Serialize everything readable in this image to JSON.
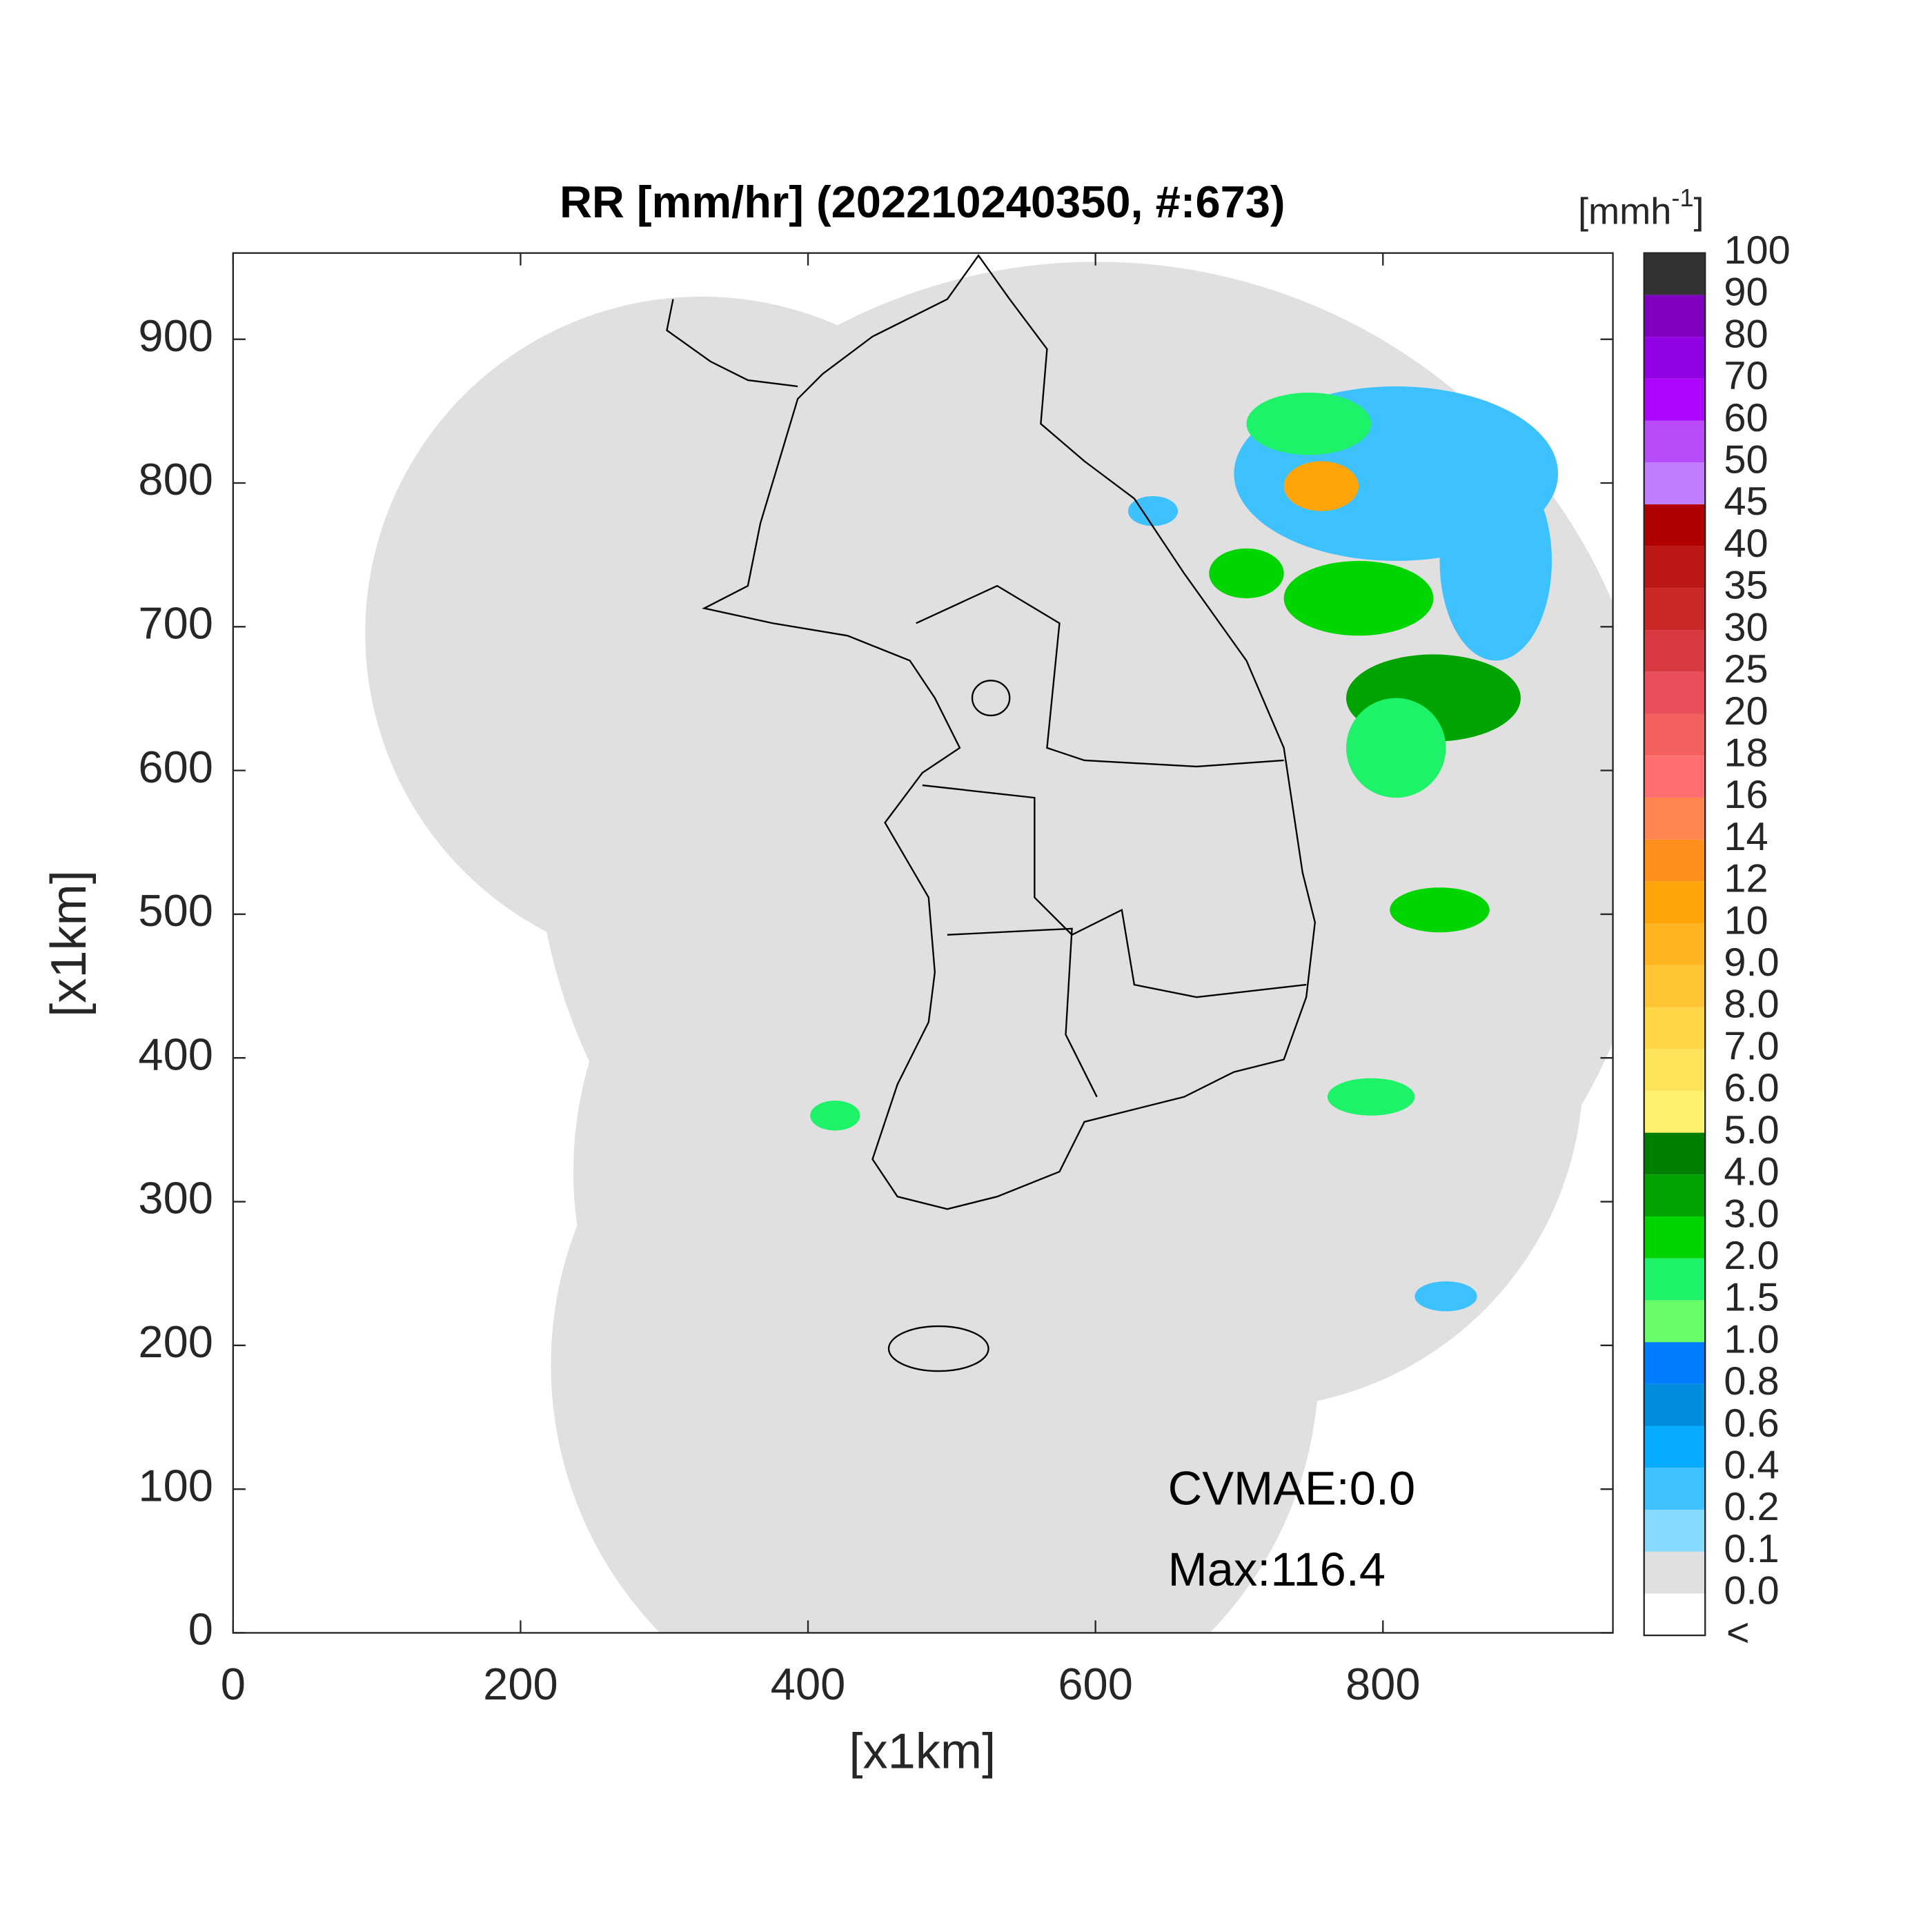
{
  "chart_data": {
    "type": "radar-map",
    "title": "RR [mm/hr] (202210240350, #:673)",
    "xlabel": "[x1km]",
    "ylabel": "[x1km]",
    "xlim": [
      0,
      960
    ],
    "ylim": [
      0,
      960
    ],
    "xticks": [
      0,
      200,
      400,
      600,
      800
    ],
    "yticks": [
      0,
      100,
      200,
      300,
      400,
      500,
      600,
      700,
      800,
      900
    ],
    "annotations": [
      "CVMAE:0.0",
      "Max:116.4"
    ],
    "colorbar": {
      "unit": {
        "base": "[mmh",
        "exponent": "-1",
        "close": "]"
      },
      "below_label": "<",
      "levels": [
        {
          "value": 0,
          "label": "0.0"
        },
        0.1,
        0.2,
        0.4,
        0.6,
        0.8,
        {
          "value": 1,
          "label": "1.0"
        },
        1.5,
        {
          "value": 2,
          "label": "2.0"
        },
        {
          "value": 3,
          "label": "3.0"
        },
        {
          "value": 4,
          "label": "4.0"
        },
        {
          "value": 5,
          "label": "5.0"
        },
        {
          "value": 6,
          "label": "6.0"
        },
        {
          "value": 7,
          "label": "7.0"
        },
        {
          "value": 8,
          "label": "8.0"
        },
        {
          "value": 9,
          "label": "9.0"
        },
        10,
        12,
        14,
        16,
        18,
        20,
        25,
        30,
        35,
        40,
        45,
        50,
        60,
        70,
        80,
        90,
        100
      ],
      "colors": [
        "#ffffff",
        "#e0e0e0",
        "#87d9ff",
        "#3ec1ff",
        "#07abff",
        "#008dde",
        "#007dff",
        "#69fc69",
        "#1ef269",
        "#00d500",
        "#00a400",
        "#008000",
        "#fff06e",
        "#ffe45a",
        "#ffd548",
        "#ffc433",
        "#ffb420",
        "#ffa50a",
        "#ff8f1c",
        "#ff8550",
        "#ff6e6e",
        "#f4605d",
        "#e84f5a",
        "#d93a41",
        "#ca2727",
        "#bd1818",
        "#b00000",
        "#c27dff",
        "#b84cfb",
        "#ad07ff",
        "#9200e4",
        "#7f00bf",
        "#333333"
      ]
    }
  }
}
